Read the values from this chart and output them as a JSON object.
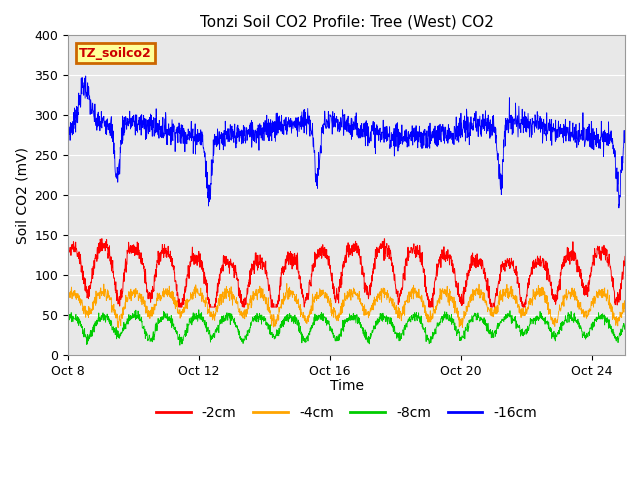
{
  "title": "Tonzi Soil CO2 Profile: Tree (West) CO2",
  "ylabel": "Soil CO2 (mV)",
  "xlabel": "Time",
  "ylim": [
    0,
    400
  ],
  "xtick_labels": [
    "Oct 8",
    "Oct 12",
    "Oct 16",
    "Oct 20",
    "Oct 24"
  ],
  "xtick_positions": [
    0,
    4,
    8,
    12,
    16
  ],
  "xlim": [
    0,
    17
  ],
  "yticks": [
    0,
    50,
    100,
    150,
    200,
    250,
    300,
    350,
    400
  ],
  "legend_labels": [
    "-2cm",
    "-4cm",
    "-8cm",
    "-16cm"
  ],
  "legend_colors": [
    "#ff0000",
    "#ffa500",
    "#00cc00",
    "#0000ff"
  ],
  "line_colors": [
    "#ff0000",
    "#ffa500",
    "#00cc00",
    "#0000ff"
  ],
  "annotation_text": "TZ_soilco2",
  "annotation_bg": "#ffff99",
  "annotation_edge": "#cc6600",
  "bg_color": "#e8e8e8",
  "title_fontsize": 11,
  "axis_label_fontsize": 10,
  "tick_fontsize": 9,
  "legend_fontsize": 10,
  "n_points": 2000
}
